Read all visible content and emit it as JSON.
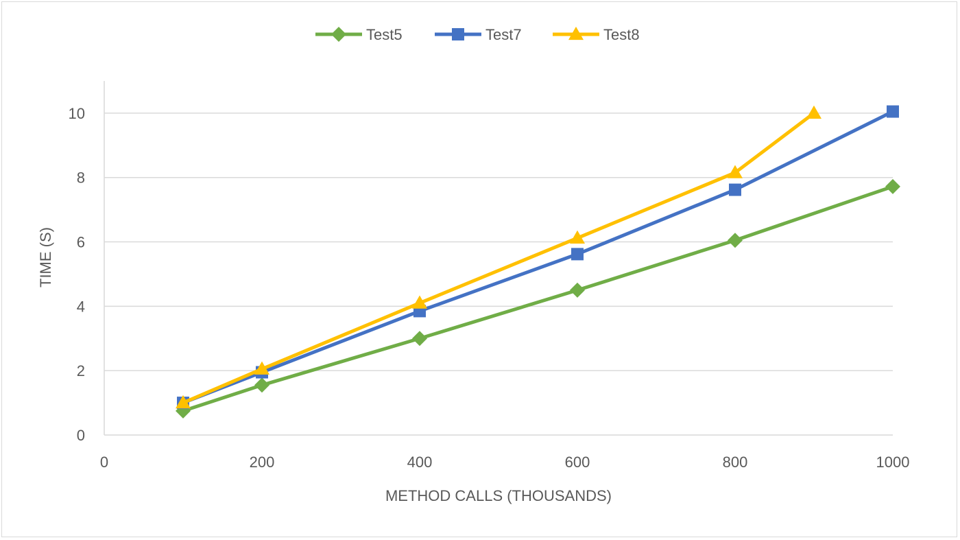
{
  "chart_data": {
    "type": "line",
    "title": "",
    "xlabel": "METHOD CALLS (THOUSANDS)",
    "ylabel": "TIME (S)",
    "xlim": [
      0,
      1000
    ],
    "ylim": [
      0,
      11
    ],
    "x_ticks": [
      0,
      200,
      400,
      600,
      800,
      1000
    ],
    "y_ticks": [
      0,
      2,
      4,
      6,
      8,
      10
    ],
    "grid": "horizontal",
    "legend": "top-center",
    "series": [
      {
        "name": "Test5",
        "color": "#70ad47",
        "marker": "diamond",
        "points": [
          {
            "x": 100,
            "y": 0.75
          },
          {
            "x": 200,
            "y": 1.55
          },
          {
            "x": 400,
            "y": 3.0
          },
          {
            "x": 600,
            "y": 4.5
          },
          {
            "x": 800,
            "y": 6.05
          },
          {
            "x": 1000,
            "y": 7.72
          }
        ]
      },
      {
        "name": "Test7",
        "color": "#4472c4",
        "marker": "square",
        "points": [
          {
            "x": 100,
            "y": 1.0
          },
          {
            "x": 200,
            "y": 1.95
          },
          {
            "x": 400,
            "y": 3.85
          },
          {
            "x": 600,
            "y": 5.62
          },
          {
            "x": 800,
            "y": 7.62
          },
          {
            "x": 1000,
            "y": 10.05
          }
        ]
      },
      {
        "name": "Test8",
        "color": "#ffc000",
        "marker": "triangle",
        "points": [
          {
            "x": 100,
            "y": 1.0
          },
          {
            "x": 200,
            "y": 2.05
          },
          {
            "x": 400,
            "y": 4.1
          },
          {
            "x": 600,
            "y": 6.12
          },
          {
            "x": 800,
            "y": 8.15
          },
          {
            "x": 900,
            "y": 10.0
          }
        ]
      }
    ]
  }
}
